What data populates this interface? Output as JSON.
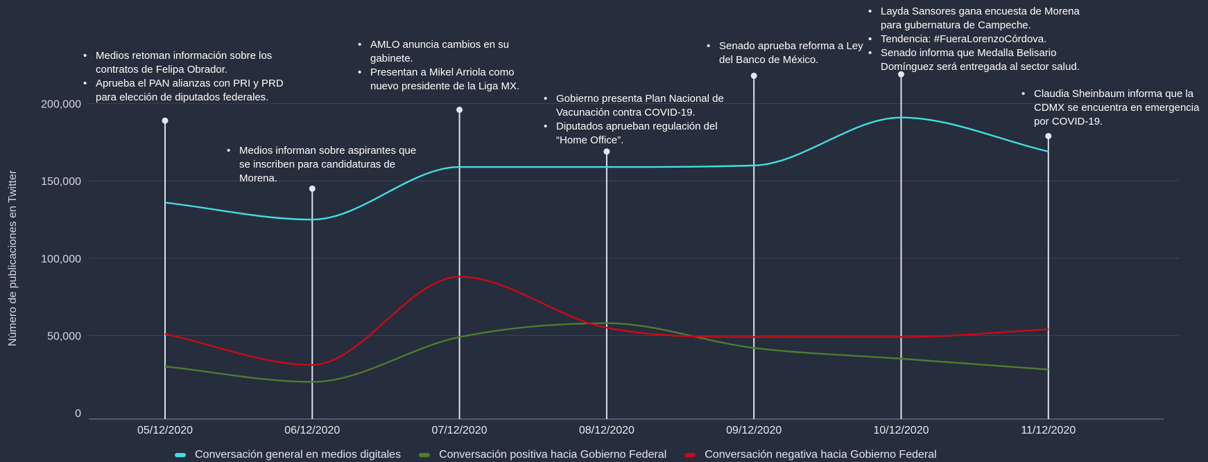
{
  "chart_data": {
    "type": "line",
    "ylabel": "Número de publicaciones en Twitter",
    "ylim": [
      0,
      200000
    ],
    "yticks": [
      0,
      50000,
      100000,
      150000,
      200000
    ],
    "ytick_labels": [
      "0",
      "50,000",
      "100,000",
      "150,000",
      "200,000"
    ],
    "categories": [
      "05/12/2020",
      "06/12/2020",
      "07/12/2020",
      "08/12/2020",
      "09/12/2020",
      "10/12/2020",
      "11/12/2020"
    ],
    "grid": true,
    "legend_position": "bottom",
    "series": [
      {
        "name": "Conversación general en medios digitales",
        "color": "#3fe0e0",
        "values": [
          136000,
          125000,
          159000,
          159000,
          160000,
          191000,
          169000
        ]
      },
      {
        "name": "Conversación positiva hacia Gobierno Federal",
        "color": "#4e7d2d",
        "values": [
          30000,
          20000,
          49000,
          58000,
          42000,
          35000,
          28000
        ]
      },
      {
        "name": "Conversación negativa hacia Gobierno Federal",
        "color": "#cc0a14",
        "values": [
          51000,
          31000,
          88000,
          55000,
          49000,
          49000,
          54000
        ]
      }
    ],
    "annotations": [
      {
        "x": "05/12/2020",
        "level": 189000,
        "items": [
          "Medios retoman información sobre los contratos de Felipa Obrador.",
          "Aprueba el PAN alianzas con PRI y PRD para elección de diputados federales."
        ]
      },
      {
        "x": "06/12/2020",
        "level": 145000,
        "items": [
          "Medios informan sobre aspirantes que se inscriben para candidaturas de Morena."
        ]
      },
      {
        "x": "07/12/2020",
        "level": 196000,
        "items": [
          "AMLO anuncia cambios en su gabinete.",
          "Presentan a Mikel Arriola como nuevo presidente de la Liga MX."
        ]
      },
      {
        "x": "08/12/2020",
        "level": 169000,
        "items": [
          "Gobierno presenta Plan Nacional de Vacunación contra COVID-19.",
          "Diputados aprueban regulación del “Home Office”."
        ]
      },
      {
        "x": "09/12/2020",
        "level": 218000,
        "items": [
          "Senado aprueba reforma a Ley del Banco de México."
        ]
      },
      {
        "x": "10/12/2020",
        "level": 219000,
        "items": [
          "Layda Sansores gana encuesta de Morena para gubernatura de Campeche.",
          "Tendencia: #FueraLorenzoCórdova.",
          "Senado informa que Medalla Belisario Domínguez será entregada al sector salud."
        ]
      },
      {
        "x": "11/12/2020",
        "level": 179000,
        "items": [
          "Claudia Sheinbaum informa que la CDMX se encuentra en emergencia por COVID-19."
        ]
      }
    ]
  }
}
